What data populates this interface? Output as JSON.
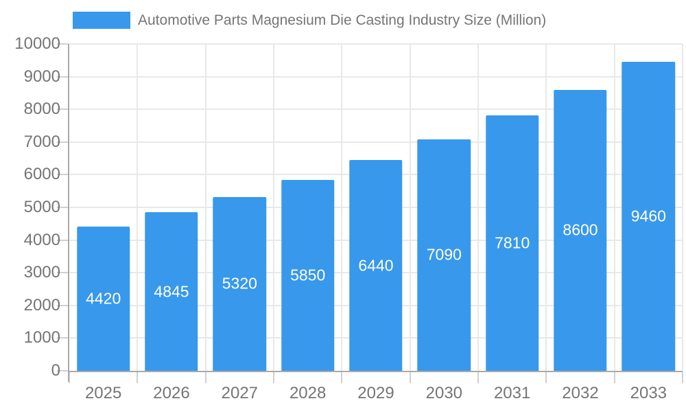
{
  "legend": {
    "label": "Automotive Parts Magnesium Die Casting Industry Size (Million)",
    "swatch_color": "#3898EC"
  },
  "chart_data": {
    "type": "bar",
    "title": "Automotive Parts Magnesium Die Casting Industry Size (Million)",
    "legend_position": "top-left",
    "categories": [
      "2025",
      "2026",
      "2027",
      "2028",
      "2029",
      "2030",
      "2031",
      "2032",
      "2033"
    ],
    "values": [
      4420,
      4845,
      5320,
      5850,
      6440,
      7090,
      7810,
      8600,
      9460
    ],
    "xlabel": "",
    "ylabel": "",
    "ylim": [
      0,
      10000
    ],
    "y_ticks": [
      0,
      1000,
      2000,
      3000,
      4000,
      5000,
      6000,
      7000,
      8000,
      9000,
      10000
    ],
    "grid": true,
    "value_label_placement": "inside-center"
  },
  "colors": {
    "bar": "#3898EC",
    "grid": "#e8e8e8",
    "axis": "#aaaaaa",
    "tick": "#d0d0d0",
    "text": "#757575",
    "value_label": "#ffffff"
  }
}
